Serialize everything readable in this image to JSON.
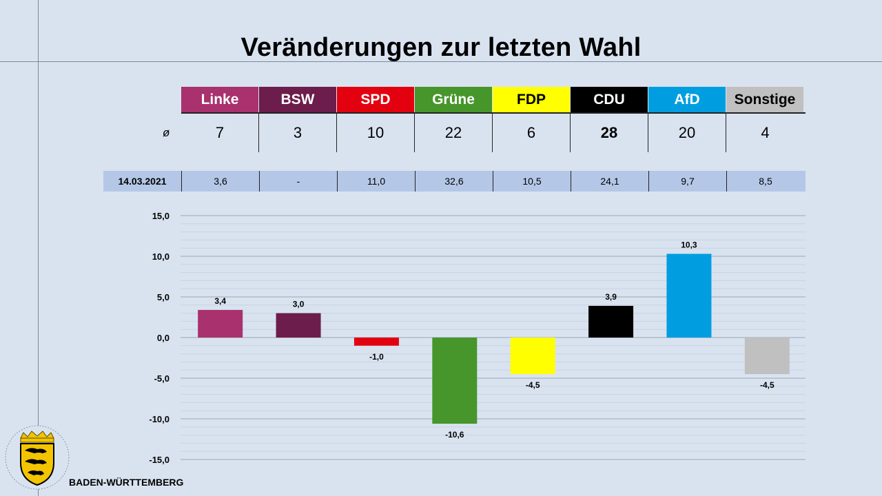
{
  "title": "Veränderungen zur letzten Wahl",
  "seats_symbol": "ø",
  "parties": [
    {
      "name": "Linke",
      "bg": "#a8316e",
      "fg": "#ffffff",
      "seats": "7",
      "prev": "3,6"
    },
    {
      "name": "BSW",
      "bg": "#6c1d4b",
      "fg": "#ffffff",
      "seats": "3",
      "prev": "-"
    },
    {
      "name": "SPD",
      "bg": "#e3000f",
      "fg": "#ffffff",
      "seats": "10",
      "prev": "11,0"
    },
    {
      "name": "Grüne",
      "bg": "#46962b",
      "fg": "#ffffff",
      "seats": "22",
      "prev": "32,6"
    },
    {
      "name": "FDP",
      "bg": "#ffff00",
      "fg": "#000000",
      "seats": "6",
      "prev": "10,5"
    },
    {
      "name": "CDU",
      "bg": "#000000",
      "fg": "#ffffff",
      "seats": "28",
      "prev": "24,1"
    },
    {
      "name": "AfD",
      "bg": "#009ee0",
      "fg": "#ffffff",
      "seats": "20",
      "prev": "9,7"
    },
    {
      "name": "Sonstige",
      "bg": "#c0c0c0",
      "fg": "#000000",
      "seats": "4",
      "prev": "8,5"
    }
  ],
  "prev_label": "14.03.2021",
  "state_name": "BADEN-WÜRTTEMBERG",
  "chart_data": {
    "type": "bar",
    "categories": [
      "Linke",
      "BSW",
      "SPD",
      "Grüne",
      "FDP",
      "CDU",
      "AfD",
      "Sonstige"
    ],
    "values": [
      3.4,
      3.0,
      -1.0,
      -10.6,
      -4.5,
      3.9,
      10.3,
      -4.5
    ],
    "value_labels": [
      "3,4",
      "3,0",
      "-1,0",
      "-10,6",
      "-4,5",
      "3,9",
      "10,3",
      "-4,5"
    ],
    "colors": [
      "#a8316e",
      "#6c1d4b",
      "#e3000f",
      "#46962b",
      "#ffff00",
      "#000000",
      "#009ee0",
      "#c0c0c0"
    ],
    "ylim": [
      -15,
      15
    ],
    "yticks": [
      15,
      10,
      5,
      0,
      -5,
      -10,
      -15
    ],
    "ytick_labels": [
      "15,0",
      "10,0",
      "5,0",
      "0,0",
      "-5,0",
      "-10,0",
      "-15,0"
    ],
    "minor_step": 1,
    "grid": true,
    "title": "",
    "xlabel": "",
    "ylabel": ""
  }
}
